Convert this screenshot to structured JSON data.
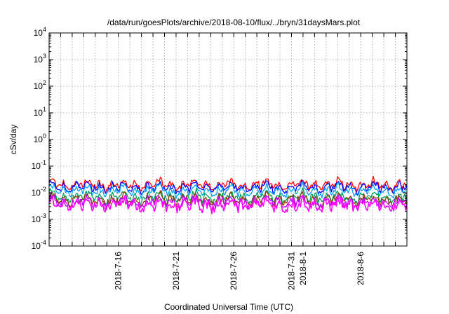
{
  "chart_data": {
    "type": "line",
    "title": "/data/run/goesPlots/archive/2018-08-10/flux/../bryn/31daysMars.plot",
    "xlabel": "Coordinated Universal Time (UTC)",
    "ylabel": "cSv/day",
    "yscale": "log",
    "ylim": [
      0.0001,
      10000
    ],
    "xlim": [
      "2018-07-10",
      "2018-08-10"
    ],
    "grid": true,
    "y_ticks": [
      {
        "base": "10",
        "exp": "-4",
        "value": 0.0001
      },
      {
        "base": "10",
        "exp": "-3",
        "value": 0.001
      },
      {
        "base": "10",
        "exp": "-2",
        "value": 0.01
      },
      {
        "base": "10",
        "exp": "-1",
        "value": 0.1
      },
      {
        "base": "10",
        "exp": "0",
        "value": 1
      },
      {
        "base": "10",
        "exp": "1",
        "value": 10
      },
      {
        "base": "10",
        "exp": "2",
        "value": 100
      },
      {
        "base": "10",
        "exp": "3",
        "value": 1000
      },
      {
        "base": "10",
        "exp": "4",
        "value": 10000
      }
    ],
    "x_ticks": [
      {
        "label": "2018-7-16",
        "date": "2018-07-16"
      },
      {
        "label": "2018-7-21",
        "date": "2018-07-21"
      },
      {
        "label": "2018-7-26",
        "date": "2018-07-26"
      },
      {
        "label": "2018-7-31",
        "date": "2018-07-31"
      },
      {
        "label": "2018-8-1",
        "date": "2018-08-01"
      },
      {
        "label": "2018-8-6",
        "date": "2018-08-06"
      }
    ],
    "series": [
      {
        "color": "#ff0000",
        "level": 0.02,
        "amplitude": 0.09
      },
      {
        "color": "#0000ff",
        "level": 0.016,
        "amplitude": 0.09
      },
      {
        "color": "#00a0ff",
        "level": 0.012,
        "amplitude": 0.09
      },
      {
        "color": "#00a060",
        "level": 0.007,
        "amplitude": 0.11
      },
      {
        "color": "#804000",
        "level": 0.0055,
        "amplitude": 0.12
      },
      {
        "color": "#c000ff",
        "level": 0.0045,
        "amplitude": 0.13
      },
      {
        "color": "#ff00ff",
        "level": 0.0035,
        "amplitude": 0.18
      }
    ]
  }
}
